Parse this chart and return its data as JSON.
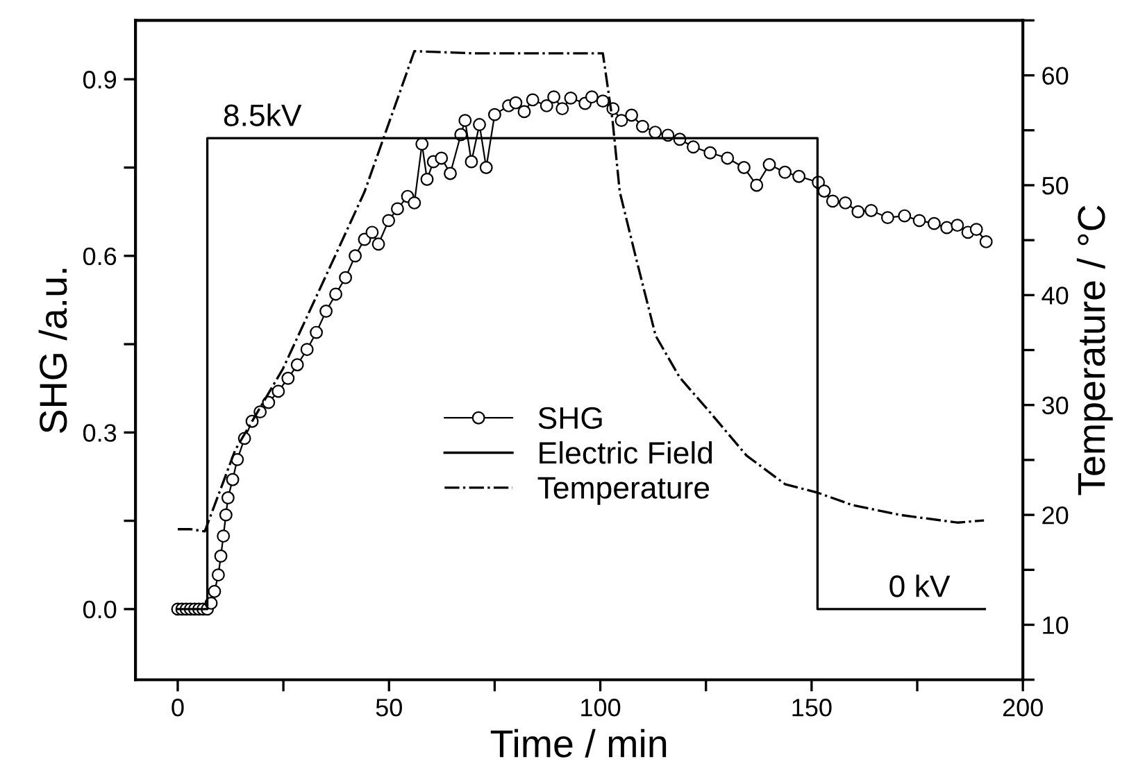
{
  "chart_data": {
    "type": "line",
    "xlabel": "Time / min",
    "ylabel": "SHG /a.u.",
    "y2label": "Temperature / °C",
    "xlim": [
      -10,
      200
    ],
    "xticks": [
      0,
      {
        "value": 25,
        "label": null
      },
      50,
      {
        "value": 75,
        "label": null
      },
      100,
      {
        "value": 125,
        "label": null
      },
      150,
      {
        "value": 175,
        "label": null
      },
      200
    ],
    "ylim": [
      -0.12,
      1.0
    ],
    "yticks": [
      {
        "value": 0,
        "label": "0.0"
      },
      {
        "value": 0.15,
        "label": null
      },
      0.3,
      {
        "value": 0.45,
        "label": null
      },
      0.6,
      {
        "value": 0.75,
        "label": null
      },
      0.9
    ],
    "y2lim": [
      5,
      65
    ],
    "y2ticks": [
      {
        "value": 5,
        "label": null
      },
      10,
      {
        "value": 15,
        "label": null
      },
      20,
      {
        "value": 25,
        "label": null
      },
      30,
      {
        "value": 35,
        "label": null
      },
      40,
      {
        "value": 45,
        "label": null
      },
      50,
      {
        "value": 55,
        "label": null
      },
      60,
      {
        "value": 65,
        "label": null
      }
    ],
    "legend": "center",
    "grid": false,
    "series": [
      {
        "name": "SHG",
        "color": "#000000",
        "marker": "circle",
        "line_style": "solid",
        "x": [
          0,
          1,
          2,
          3,
          4,
          5,
          6,
          7,
          7.9,
          8.7,
          9.6,
          10.2,
          10.8,
          11.4,
          11.9,
          13,
          14.1,
          15.8,
          17.6,
          19.5,
          21.5,
          23.8,
          26.1,
          28.3,
          30.6,
          32.8,
          35.1,
          37.4,
          39.7,
          42,
          44.2,
          46,
          47.5,
          49.9,
          52,
          54.4,
          56,
          57.8,
          59,
          60.5,
          62.4,
          64.5,
          67,
          68,
          69.5,
          71.4,
          73,
          75,
          78.3,
          80,
          82,
          84,
          87.3,
          89,
          91,
          93,
          96.4,
          98,
          100.6,
          103,
          105,
          107.4,
          110,
          113,
          116,
          118.8,
          122,
          126,
          130.1,
          134,
          137,
          140,
          143.7,
          147,
          151.6,
          153,
          155,
          158,
          161,
          164.1,
          168,
          172,
          175.5,
          179,
          182,
          184.5,
          187,
          189,
          191.3
        ],
        "values": [
          0,
          0,
          0,
          0,
          0,
          0,
          0,
          0,
          0.01,
          0.03,
          0.058,
          0.09,
          0.124,
          0.16,
          0.189,
          0.22,
          0.254,
          0.29,
          0.319,
          0.335,
          0.351,
          0.37,
          0.392,
          0.415,
          0.441,
          0.47,
          0.506,
          0.535,
          0.563,
          0.6,
          0.628,
          0.64,
          0.62,
          0.66,
          0.68,
          0.701,
          0.69,
          0.79,
          0.73,
          0.76,
          0.766,
          0.74,
          0.806,
          0.83,
          0.76,
          0.823,
          0.75,
          0.84,
          0.855,
          0.86,
          0.845,
          0.865,
          0.855,
          0.87,
          0.85,
          0.868,
          0.859,
          0.87,
          0.863,
          0.85,
          0.83,
          0.839,
          0.82,
          0.81,
          0.805,
          0.798,
          0.785,
          0.775,
          0.766,
          0.75,
          0.72,
          0.755,
          0.742,
          0.735,
          0.725,
          0.71,
          0.693,
          0.69,
          0.675,
          0.677,
          0.665,
          0.668,
          0.66,
          0.655,
          0.648,
          0.652,
          0.64,
          0.645,
          0.624
        ]
      },
      {
        "name": "Electric Field",
        "color": "#000000",
        "marker": "none",
        "line_style": "solid",
        "x": [
          0,
          7,
          7,
          151.4,
          151.4,
          191
        ],
        "values": [
          0,
          0,
          0.8,
          0.8,
          0,
          0
        ]
      },
      {
        "name": "Temperature",
        "color": "#000000",
        "marker": "none",
        "line_style": "dashdot",
        "axis": "y2",
        "x": [
          0,
          3,
          6.4,
          13.6,
          24.9,
          37.4,
          44.2,
          56,
          70,
          85,
          99.7,
          100.6,
          102.9,
          104.6,
          108.5,
          113.1,
          118.8,
          125.6,
          134.6,
          143.7,
          151.6,
          159.6,
          170.9,
          184.5,
          190.8
        ],
        "values": [
          18.7,
          18.7,
          18.5,
          25.9,
          33.3,
          43.7,
          49.4,
          62.2,
          62,
          62,
          62,
          62,
          55.9,
          49.4,
          43.3,
          36.3,
          32.5,
          29.5,
          25.4,
          22.8,
          22.0,
          20.9,
          20.0,
          19.3,
          19.5
        ]
      }
    ],
    "annotations": [
      {
        "text": "8.5kV",
        "x": 20,
        "y": 0.8
      },
      {
        "text": "0 kV",
        "x": 175.5,
        "y": 0.0
      }
    ]
  }
}
